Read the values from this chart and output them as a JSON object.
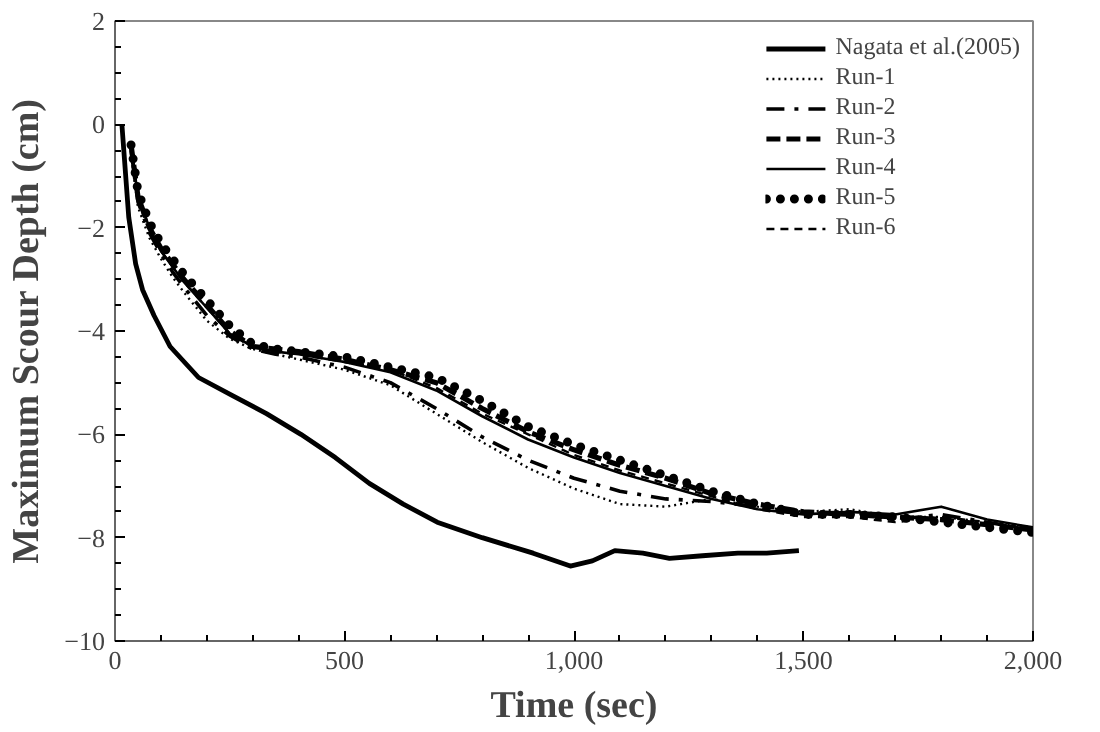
{
  "chart_data": {
    "type": "line",
    "xlabel": "Time (sec)",
    "ylabel": "Maximum Scour Depth (cm)",
    "xlim": [
      0,
      2000
    ],
    "xticks": [
      0,
      500,
      {
        "value": 1000,
        "label": "1,000"
      },
      {
        "value": 1500,
        "label": "1,500"
      },
      {
        "value": 2000,
        "label": "2,000"
      }
    ],
    "ylim": [
      -10,
      2
    ],
    "yticks": [
      -10,
      -8,
      -6,
      -4,
      -2,
      0,
      2
    ],
    "x": [
      35,
      50,
      75,
      100,
      125,
      150,
      200,
      250,
      300,
      350,
      400,
      500,
      600,
      700,
      800,
      900,
      1000,
      1100,
      1200,
      1300,
      1400,
      1500,
      1600,
      1700,
      1800,
      1900,
      2000
    ],
    "grid": false,
    "legend": "top right",
    "series": [
      {
        "name": "Nagata et al.(2005)",
        "color": "#000000",
        "line_style": "solid",
        "x": [
          15,
          30,
          45,
          60,
          85,
          120,
          182,
          256,
          330,
          405,
          480,
          554,
          628,
          702,
          800,
          911,
          992,
          1040,
          1089,
          1150,
          1208,
          1280,
          1357,
          1420,
          1490
        ],
        "values": [
          0,
          -1.8,
          -2.7,
          -3.2,
          -3.7,
          -4.3,
          -4.9,
          -5.25,
          -5.6,
          -6.0,
          -6.45,
          -6.95,
          -7.35,
          -7.7,
          -8.0,
          -8.3,
          -8.55,
          -8.45,
          -8.25,
          -8.3,
          -8.4,
          -8.35,
          -8.3,
          -8.3,
          -8.25
        ]
      },
      {
        "name": "Run-1",
        "color": "#000000",
        "line_style": "dotted",
        "values": [
          -0.5,
          -1.6,
          -2.2,
          -2.6,
          -2.95,
          -3.25,
          -3.8,
          -4.15,
          -4.35,
          -4.45,
          -4.55,
          -4.75,
          -5.05,
          -5.6,
          -6.15,
          -6.65,
          -7.05,
          -7.35,
          -7.4,
          -7.25,
          -7.4,
          -7.5,
          -7.45,
          -7.6,
          -7.6,
          -7.7,
          -7.8
        ]
      },
      {
        "name": "Run-2",
        "color": "#000000",
        "line_style": "dashdot",
        "values": [
          -0.5,
          -1.5,
          -2.1,
          -2.5,
          -2.85,
          -3.15,
          -3.7,
          -4.1,
          -4.35,
          -4.45,
          -4.5,
          -4.7,
          -5.0,
          -5.5,
          -6.05,
          -6.5,
          -6.85,
          -7.1,
          -7.25,
          -7.3,
          -7.4,
          -7.55,
          -7.5,
          -7.65,
          -7.55,
          -7.7,
          -7.85
        ]
      },
      {
        "name": "Run-3",
        "color": "#000000",
        "line_style": "dashed",
        "values": [
          -0.4,
          -1.4,
          -2.0,
          -2.4,
          -2.7,
          -3.0,
          -3.5,
          -4.0,
          -4.3,
          -4.35,
          -4.4,
          -4.55,
          -4.75,
          -5.0,
          -5.5,
          -5.95,
          -6.3,
          -6.6,
          -6.85,
          -7.15,
          -7.35,
          -7.5,
          -7.55,
          -7.6,
          -7.65,
          -7.75,
          -7.85
        ]
      },
      {
        "name": "Run-4",
        "color": "#000000",
        "line_style": "solid",
        "values": [
          -0.4,
          -1.4,
          -2.0,
          -2.45,
          -2.75,
          -3.05,
          -3.55,
          -4.05,
          -4.3,
          -4.4,
          -4.45,
          -4.6,
          -4.8,
          -5.15,
          -5.65,
          -6.1,
          -6.45,
          -6.75,
          -7.0,
          -7.25,
          -7.45,
          -7.55,
          -7.5,
          -7.55,
          -7.4,
          -7.65,
          -7.8
        ]
      },
      {
        "name": "Run-5",
        "color": "#000000",
        "line_style": "dotted",
        "values": [
          -0.4,
          -1.3,
          -1.9,
          -2.3,
          -2.6,
          -2.9,
          -3.4,
          -3.9,
          -4.25,
          -4.35,
          -4.4,
          -4.5,
          -4.7,
          -4.9,
          -5.35,
          -5.85,
          -6.2,
          -6.5,
          -6.8,
          -7.1,
          -7.35,
          -7.55,
          -7.55,
          -7.6,
          -7.7,
          -7.8,
          -7.9
        ]
      },
      {
        "name": "Run-6",
        "color": "#000000",
        "line_style": "dashed",
        "values": [
          -0.4,
          -1.4,
          -2.0,
          -2.45,
          -2.75,
          -3.05,
          -3.55,
          -4.05,
          -4.3,
          -4.4,
          -4.45,
          -4.6,
          -4.75,
          -5.1,
          -5.6,
          -6.0,
          -6.4,
          -6.7,
          -6.95,
          -7.2,
          -7.45,
          -7.6,
          -7.6,
          -7.7,
          -7.6,
          -7.7,
          -7.85
        ]
      }
    ]
  }
}
